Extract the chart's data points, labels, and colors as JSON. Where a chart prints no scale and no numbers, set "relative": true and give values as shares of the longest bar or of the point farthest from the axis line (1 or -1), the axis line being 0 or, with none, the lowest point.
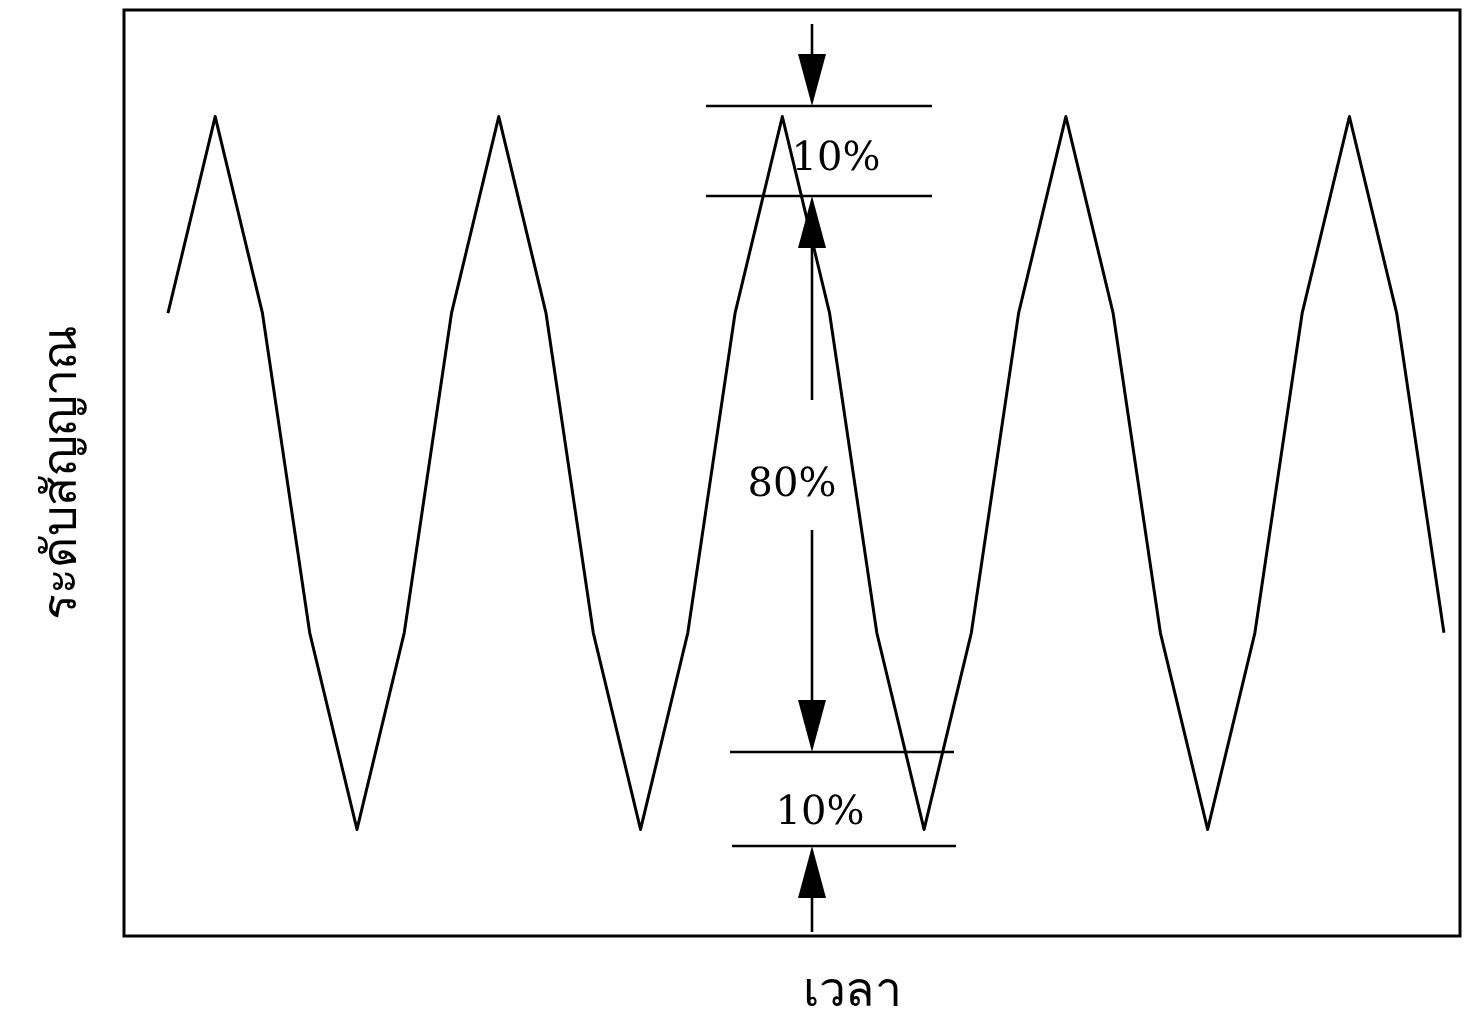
{
  "chart_data": {
    "type": "line",
    "relative": true,
    "xlabel": "เวลา",
    "ylabel": "ระดับสัญญาณ",
    "categories": [
      null,
      null,
      null,
      null,
      null,
      null,
      null,
      null,
      null,
      null,
      null,
      null,
      null,
      null,
      null,
      null,
      null,
      null,
      null,
      null,
      null,
      null,
      null,
      null,
      null,
      null,
      null,
      null
    ],
    "series": [
      {
        "color": "#000000",
        "values": [
          0.76,
          1,
          0.76,
          0.37,
          0.13,
          0.37,
          0.76,
          1,
          0.76,
          0.37,
          0.13,
          0.37,
          0.76,
          1,
          0.76,
          0.37,
          0.13,
          0.37,
          0.76,
          1,
          0.76,
          0.37,
          0.13,
          0.37,
          0.76,
          1,
          0.76,
          0.37
        ]
      }
    ],
    "annotations": [
      "10%",
      "80%",
      "10%"
    ],
    "grid": false,
    "marker": "none",
    "line_style": "solid"
  }
}
